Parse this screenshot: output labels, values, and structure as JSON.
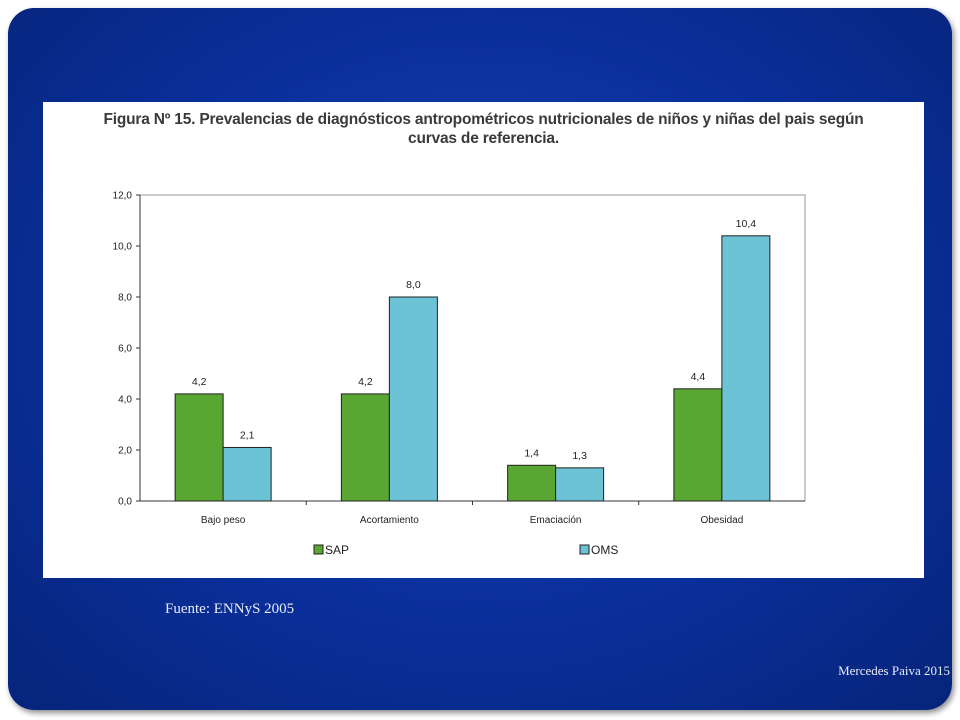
{
  "source": "Fuente: ENNyS 2005",
  "author": "Mercedes Paiva 2015",
  "colors": {
    "slide_bg": "#0a2f9b",
    "SAP": "#5aa632",
    "OMS": "#6cc3d6"
  },
  "chart_data": {
    "type": "bar",
    "title": "Figura Nº 15. Prevalencias de diagnósticos antropométricos nutricionales de niños y niñas del pais según curvas de referencia.",
    "title_lines": [
      "Figura Nº 15. Prevalencias de diagnósticos antropométricos nutricionales de niños y niñas del pais según",
      "curvas de referencia."
    ],
    "xlabel": "",
    "ylabel": "",
    "categories": [
      "Bajo peso",
      "Acortamiento",
      "Emaciación",
      "Obesidad"
    ],
    "series": [
      {
        "name": "SAP",
        "values": [
          4.2,
          4.2,
          1.4,
          4.4
        ],
        "labels": [
          "4,2",
          "4,2",
          "1,4",
          "4,4"
        ],
        "color": "#5aa632"
      },
      {
        "name": "OMS",
        "values": [
          2.1,
          8.0,
          1.3,
          10.4
        ],
        "labels": [
          "2,1",
          "8,0",
          "1,3",
          "10,4"
        ],
        "color": "#6cc3d6"
      }
    ],
    "ylim": [
      0,
      12
    ],
    "yticks": [
      0,
      2,
      4,
      6,
      8,
      10,
      12
    ],
    "ytick_labels": [
      "0,0",
      "2,0",
      "4,0",
      "6,0",
      "8,0",
      "10,0",
      "12,0"
    ],
    "grid": false,
    "legend": "bottom"
  }
}
